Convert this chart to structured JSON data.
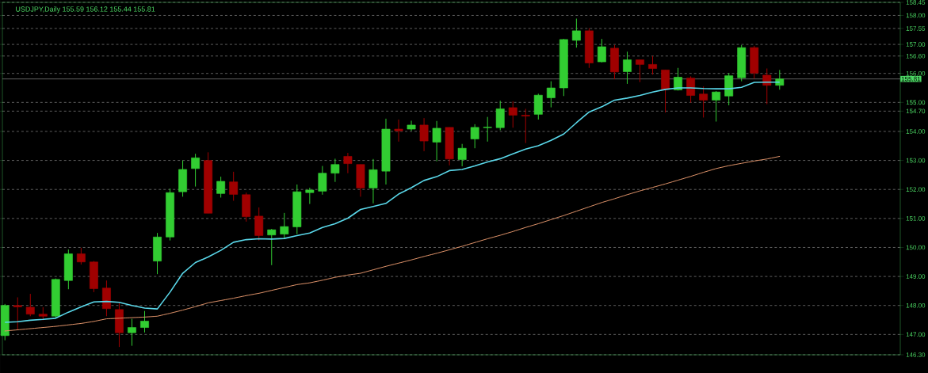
{
  "chart_data": {
    "type": "candlestick",
    "title": "USDJPY,Daily  155.59 156.12 155.44 155.81",
    "categories": [
      null,
      null,
      null,
      null,
      null,
      null,
      null,
      null,
      null,
      null,
      null,
      null,
      null,
      null,
      null,
      null,
      null,
      null,
      null,
      null,
      null,
      null,
      null,
      null,
      null,
      null,
      null,
      null,
      null,
      null,
      null,
      null,
      null,
      null,
      null,
      null,
      null,
      null,
      null,
      null,
      null,
      null,
      null,
      null,
      null,
      null,
      null,
      null,
      null,
      null,
      null,
      null,
      null,
      null,
      null,
      null,
      null,
      null,
      null,
      null,
      null,
      null
    ],
    "ohlc": [
      [
        146.96,
        148.05,
        146.8,
        148.0
      ],
      [
        148.0,
        148.28,
        147.17,
        147.95
      ],
      [
        147.94,
        148.4,
        147.63,
        147.7
      ],
      [
        147.7,
        147.94,
        147.49,
        147.63
      ],
      [
        147.63,
        148.93,
        147.56,
        148.9
      ],
      [
        148.86,
        149.93,
        148.56,
        149.78
      ],
      [
        149.78,
        149.99,
        149.41,
        149.5
      ],
      [
        149.5,
        149.53,
        148.46,
        148.58
      ],
      [
        148.6,
        148.86,
        147.63,
        147.89
      ],
      [
        147.86,
        148.09,
        146.57,
        147.06
      ],
      [
        147.06,
        147.54,
        146.61,
        147.24
      ],
      [
        147.24,
        147.81,
        147.07,
        147.46
      ],
      [
        149.53,
        150.5,
        149.08,
        150.36
      ],
      [
        150.36,
        152.03,
        150.24,
        151.89
      ],
      [
        151.92,
        153.0,
        151.75,
        152.69
      ],
      [
        152.72,
        153.23,
        152.1,
        153.09
      ],
      [
        153.0,
        153.28,
        151.18,
        151.18
      ],
      [
        151.86,
        152.44,
        151.72,
        152.28
      ],
      [
        152.26,
        152.61,
        151.61,
        151.83
      ],
      [
        151.82,
        151.89,
        150.89,
        151.06
      ],
      [
        151.08,
        151.38,
        150.24,
        150.41
      ],
      [
        150.43,
        150.64,
        149.39,
        150.61
      ],
      [
        150.46,
        151.19,
        150.31,
        150.72
      ],
      [
        150.71,
        152.17,
        150.46,
        151.92
      ],
      [
        151.89,
        152.06,
        151.5,
        151.98
      ],
      [
        151.94,
        152.81,
        151.82,
        152.56
      ],
      [
        152.56,
        153.06,
        152.26,
        152.86
      ],
      [
        153.14,
        153.26,
        152.56,
        152.89
      ],
      [
        152.86,
        152.86,
        151.75,
        152.05
      ],
      [
        152.05,
        153.05,
        151.52,
        152.68
      ],
      [
        152.63,
        154.44,
        152.17,
        154.08
      ],
      [
        154.08,
        154.41,
        153.65,
        154.02
      ],
      [
        154.08,
        154.37,
        154.02,
        154.22
      ],
      [
        154.22,
        154.46,
        153.32,
        153.67
      ],
      [
        153.63,
        154.36,
        152.97,
        154.11
      ],
      [
        154.14,
        154.14,
        152.83,
        153.05
      ],
      [
        153.03,
        153.57,
        152.8,
        153.42
      ],
      [
        153.74,
        154.25,
        153.42,
        154.14
      ],
      [
        154.13,
        154.5,
        153.65,
        154.15
      ],
      [
        154.13,
        155.06,
        154.04,
        154.78
      ],
      [
        154.82,
        155.04,
        154.13,
        154.56
      ],
      [
        154.56,
        154.78,
        153.6,
        154.53
      ],
      [
        154.59,
        155.3,
        154.41,
        155.25
      ],
      [
        155.16,
        155.73,
        154.83,
        155.5
      ],
      [
        155.5,
        157.19,
        155.22,
        157.17
      ],
      [
        157.14,
        157.89,
        156.89,
        157.47
      ],
      [
        157.47,
        157.56,
        156.19,
        156.36
      ],
      [
        156.4,
        157.19,
        156.38,
        156.92
      ],
      [
        156.87,
        156.98,
        155.8,
        156.05
      ],
      [
        156.06,
        156.75,
        155.64,
        156.47
      ],
      [
        156.47,
        156.47,
        155.7,
        156.31
      ],
      [
        156.31,
        156.6,
        155.96,
        156.17
      ],
      [
        156.12,
        156.12,
        154.65,
        155.45
      ],
      [
        155.43,
        156.19,
        155.41,
        155.87
      ],
      [
        155.84,
        155.9,
        154.99,
        155.24
      ],
      [
        155.29,
        155.55,
        154.48,
        155.08
      ],
      [
        155.08,
        155.39,
        154.34,
        155.36
      ],
      [
        155.22,
        156.01,
        154.9,
        155.92
      ],
      [
        155.85,
        156.98,
        155.73,
        156.89
      ],
      [
        156.89,
        156.95,
        155.82,
        156.01
      ],
      [
        155.94,
        156.17,
        154.94,
        155.59
      ],
      [
        155.59,
        156.12,
        155.44,
        155.81
      ]
    ],
    "colors": [
      "#32cd32",
      "#a00000",
      "#a00000",
      "#a00000",
      "#32cd32",
      "#32cd32",
      "#a00000",
      "#a00000",
      "#a00000",
      "#a00000",
      "#32cd32",
      "#32cd32",
      "#32cd32",
      "#32cd32",
      "#32cd32",
      "#32cd32",
      "#a00000",
      "#32cd32",
      "#a00000",
      "#a00000",
      "#a00000",
      "#32cd32",
      "#32cd32",
      "#32cd32",
      "#32cd32",
      "#32cd32",
      "#32cd32",
      "#a00000",
      "#a00000",
      "#32cd32",
      "#32cd32",
      "#a00000",
      "#32cd32",
      "#a00000",
      "#32cd32",
      "#a00000",
      "#32cd32",
      "#32cd32",
      "#32cd32",
      "#32cd32",
      "#a00000",
      "#a00000",
      "#32cd32",
      "#32cd32",
      "#32cd32",
      "#32cd32",
      "#a00000",
      "#32cd32",
      "#a00000",
      "#32cd32",
      "#a00000",
      "#a00000",
      "#a00000",
      "#32cd32",
      "#a00000",
      "#a00000",
      "#32cd32",
      "#32cd32",
      "#32cd32",
      "#a00000",
      "#a00000",
      "#32cd32"
    ],
    "series": [
      {
        "type": "line",
        "color": "#5ad8ea",
        "line_style": "solid",
        "values": [
          147.42,
          147.44,
          147.49,
          147.52,
          147.56,
          147.77,
          147.95,
          148.12,
          148.14,
          148.11,
          148.0,
          147.91,
          147.88,
          148.46,
          149.11,
          149.48,
          149.67,
          149.9,
          150.18,
          150.27,
          150.3,
          150.29,
          150.31,
          150.41,
          150.5,
          150.69,
          150.82,
          151.01,
          151.31,
          151.41,
          151.52,
          151.84,
          152.06,
          152.31,
          152.44,
          152.65,
          152.69,
          152.81,
          152.95,
          153.06,
          153.23,
          153.39,
          153.51,
          153.69,
          153.91,
          154.3,
          154.67,
          154.85,
          155.08,
          155.15,
          155.24,
          155.36,
          155.45,
          155.5,
          155.5,
          155.48,
          155.47,
          155.47,
          155.52,
          155.69,
          155.7,
          155.7
        ]
      },
      {
        "type": "line",
        "color": "#e0946a",
        "line_style": "dashed",
        "values": [
          147.12,
          147.16,
          147.2,
          147.24,
          147.28,
          147.33,
          147.38,
          147.45,
          147.54,
          147.56,
          147.58,
          147.6,
          147.63,
          147.73,
          147.84,
          147.96,
          148.09,
          148.17,
          148.25,
          148.34,
          148.42,
          148.52,
          148.62,
          148.72,
          148.78,
          148.87,
          148.97,
          149.05,
          149.11,
          149.23,
          149.35,
          149.46,
          149.57,
          149.69,
          149.8,
          149.92,
          150.04,
          150.17,
          150.3,
          150.42,
          150.55,
          150.69,
          150.82,
          150.96,
          151.1,
          151.25,
          151.4,
          151.55,
          151.68,
          151.82,
          151.95,
          152.07,
          152.19,
          152.32,
          152.45,
          152.59,
          152.72,
          152.82,
          152.9,
          152.98,
          153.05,
          153.14
        ]
      }
    ],
    "ylim": [
      146.3,
      158.45
    ],
    "yticks": [
      {
        "value": 146.3,
        "label": "146.30"
      },
      {
        "value": 147,
        "label": "147.00"
      },
      {
        "value": 148,
        "label": "148.00"
      },
      {
        "value": 149,
        "label": "149.00"
      },
      {
        "value": 150,
        "label": "150.00"
      },
      {
        "value": 151,
        "label": "151.00"
      },
      {
        "value": 152,
        "label": "152.00"
      },
      {
        "value": 153,
        "label": "153.00"
      },
      {
        "value": 154,
        "label": "154.00"
      },
      {
        "value": 154.7,
        "label": "154.70"
      },
      {
        "value": 155,
        "label": "155.00"
      },
      {
        "value": 156,
        "label": "156.00"
      },
      {
        "value": 156.6,
        "label": "156.60"
      },
      {
        "value": 157,
        "label": "157.00"
      },
      {
        "value": 157.55,
        "label": "157.55"
      },
      {
        "value": 158,
        "label": "158.00"
      },
      {
        "value": 158.45,
        "label": "158.45"
      }
    ],
    "ref_lines": [
      {
        "axis": "y",
        "value": 155.81,
        "label": "155.81",
        "color": "#a0a0a0"
      }
    ],
    "grid": "y"
  }
}
